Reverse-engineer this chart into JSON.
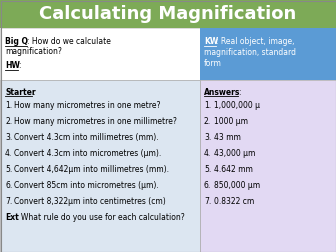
{
  "title": "Calculating Magnification",
  "title_bg": "#7daa57",
  "title_color": "#ffffff",
  "title_fontsize": 13,
  "kw_bg": "#5b9bd5",
  "kw_color": "#ffffff",
  "left_bg": "#dce6f1",
  "right_bg": "#e2d9f3",
  "questions": [
    "How many micrometres in one metre?",
    "How many micrometres in one millimetre?",
    "Convert 4.3cm into millimetres (mm).",
    "Convert 4.3cm into micrometres (μm).",
    "Convert 4,642μm into millimetres (mm).",
    "Convert 85cm into micrometres (μm).",
    "Convert 8,322μm into centimetres (cm)"
  ],
  "answers": [
    "1,000,000 μ",
    "1000 μm",
    "43 mm",
    "43,000 μm",
    "4.642 mm",
    "850,000 μm",
    "0.8322 cm"
  ],
  "ext_text": ": What rule do you use for each calculation?",
  "font_size": 5.5
}
